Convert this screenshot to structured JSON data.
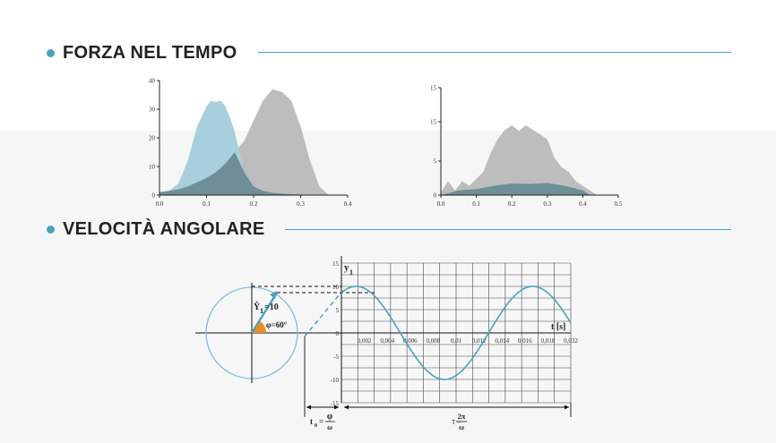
{
  "section1": {
    "title": "FORZA NEL TEMPO"
  },
  "section2": {
    "title": "VELOCITÀ ANGOLARE"
  },
  "colors": {
    "accent": "#4aa3bf",
    "grey_area": "#bdbdbd",
    "blue_area": "#a8d0dc",
    "overlap": "#6e8e98",
    "phase": "#f08a1c"
  },
  "chart_data": [
    {
      "type": "area",
      "x_ticks": [
        "0.0",
        "0.1",
        "0.2",
        "0.3",
        "0.4"
      ],
      "y_ticks": [
        "0",
        "10",
        "20",
        "30",
        "40"
      ],
      "xlim": [
        0,
        0.4
      ],
      "ylim": [
        0,
        40
      ],
      "series": [
        {
          "x": [
            0,
            0.02,
            0.04,
            0.06,
            0.08,
            0.1,
            0.11,
            0.12,
            0.13,
            0.14,
            0.15,
            0.16,
            0.17,
            0.18,
            0.2,
            0.22,
            0.24,
            0.26,
            0.28,
            0.3,
            0.32
          ],
          "values": [
            1,
            1.5,
            4,
            12,
            24,
            31,
            33,
            32.5,
            33,
            31,
            27,
            22,
            15,
            8,
            3,
            1.5,
            0.8,
            0.5,
            0.3,
            0.2,
            0
          ]
        },
        {
          "x": [
            0,
            0.02,
            0.04,
            0.06,
            0.08,
            0.1,
            0.12,
            0.14,
            0.16,
            0.18,
            0.2,
            0.22,
            0.24,
            0.26,
            0.28,
            0.3,
            0.32,
            0.34,
            0.36
          ],
          "values": [
            1,
            1.5,
            2,
            3,
            4.5,
            6,
            8,
            11,
            15,
            19,
            26,
            33,
            37,
            36,
            33,
            24,
            12,
            3,
            0
          ]
        }
      ]
    },
    {
      "type": "area",
      "x_ticks": [
        "0.0",
        "0.1",
        "0.2",
        "0.3",
        "0.4",
        "0.5"
      ],
      "y_ticks": [
        "0",
        "5",
        "15",
        "15"
      ],
      "xlim": [
        0,
        0.5
      ],
      "ylim": [
        0,
        20
      ],
      "series": [
        {
          "x": [
            0,
            0.02,
            0.04,
            0.06,
            0.08,
            0.1,
            0.12,
            0.14,
            0.16,
            0.18,
            0.2,
            0.22,
            0.24,
            0.26,
            0.28,
            0.3,
            0.32,
            0.34,
            0.36,
            0.38,
            0.4,
            0.42,
            0.44
          ],
          "values": [
            0.5,
            3,
            1,
            3,
            2,
            3.5,
            5,
            9,
            12,
            14,
            15,
            13.8,
            15,
            14,
            13,
            12,
            8,
            6,
            5,
            3,
            2,
            1,
            0
          ]
        },
        {
          "x": [
            0,
            0.05,
            0.1,
            0.15,
            0.2,
            0.25,
            0.3,
            0.35,
            0.4,
            0.42
          ],
          "values": [
            0,
            1,
            1.3,
            2,
            2.5,
            2.4,
            2.6,
            2,
            1,
            0
          ]
        }
      ]
    },
    {
      "type": "line",
      "x_ticks": [
        "0,002",
        "0,004",
        "0,006",
        "0,008",
        "0,01",
        "0,012",
        "0,014",
        "0,016",
        "0,018",
        "0,032"
      ],
      "y_ticks": [
        "15",
        "10",
        "5",
        "0",
        "-5",
        "-10",
        "-15"
      ],
      "ylim": [
        -15,
        15
      ],
      "y_label": "y",
      "y_label_sub": "1",
      "x_axis_label": "t [s]",
      "amplitude": 10,
      "phase_deg": 60,
      "phasor_label": "Ŷ",
      "phasor_label_sub": "1",
      "phasor_value": "=10",
      "phase_label": "φ=60°",
      "t0_label": "t",
      "t0_sub": "0",
      "t0_eq": "=",
      "t0_num": "φ",
      "t0_den": "ω",
      "period_label": "T =",
      "period_num": "2π",
      "period_den": "ω"
    }
  ]
}
